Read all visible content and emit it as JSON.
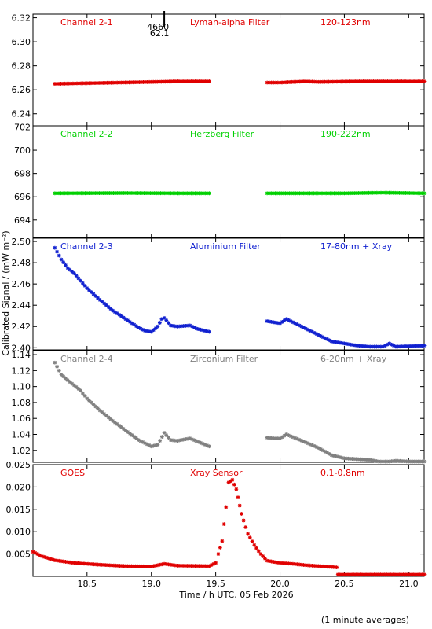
{
  "chart_data": {
    "type": "scatter",
    "xlabel": "Time / h UTC, 05 Feb 2026",
    "ylabel": "Calibrated Signal / (mW m⁻²)",
    "footnote": "(1 minute averages)",
    "xlim": [
      18.08,
      21.12
    ],
    "xticks": [
      "18.5",
      "19.0",
      "19.5",
      "20.0",
      "20.5",
      "21.0"
    ],
    "marker": {
      "time": 19.1,
      "label_top": "4660",
      "label_bottom": "62.1"
    },
    "panels": [
      {
        "labels": [
          "Channel 2-1",
          "Lyman-alpha Filter",
          "120-123nm"
        ],
        "color": "#e00000",
        "ylim": [
          6.23,
          6.323
        ],
        "yticks": [
          "6.24",
          "6.26",
          "6.28",
          "6.30",
          "6.32"
        ],
        "series": [
          [
            [
              18.25,
              6.265
            ],
            [
              18.5,
              6.2655
            ],
            [
              19.0,
              6.2665
            ],
            [
              19.2,
              6.267
            ],
            [
              19.45,
              6.267
            ]
          ],
          [
            [
              19.9,
              6.266
            ],
            [
              20.0,
              6.266
            ],
            [
              20.2,
              6.267
            ],
            [
              20.3,
              6.2665
            ],
            [
              20.6,
              6.267
            ],
            [
              21.12,
              6.267
            ]
          ]
        ]
      },
      {
        "labels": [
          "Channel 2-2",
          "Herzberg Filter",
          "190-222nm"
        ],
        "color": "#00d000",
        "ylim": [
          692.5,
          702.1
        ],
        "yticks": [
          "694",
          "696",
          "698",
          "700",
          "702"
        ],
        "series": [
          [
            [
              18.25,
              696.3
            ],
            [
              18.8,
              696.32
            ],
            [
              19.2,
              696.3
            ],
            [
              19.45,
              696.3
            ]
          ],
          [
            [
              19.9,
              696.3
            ],
            [
              20.5,
              696.3
            ],
            [
              20.8,
              696.35
            ],
            [
              21.12,
              696.3
            ]
          ]
        ]
      },
      {
        "labels": [
          "Channel 2-3",
          "Aluminium Filter",
          "17-80nm + Xray"
        ],
        "color": "#1020d0",
        "ylim": [
          2.398,
          2.503
        ],
        "yticks": [
          "2.40",
          "2.42",
          "2.44",
          "2.46",
          "2.48",
          "2.50"
        ],
        "series": [
          [
            [
              18.25,
              2.494
            ],
            [
              18.3,
              2.483
            ],
            [
              18.35,
              2.475
            ],
            [
              18.4,
              2.47
            ],
            [
              18.5,
              2.456
            ],
            [
              18.6,
              2.445
            ],
            [
              18.7,
              2.435
            ],
            [
              18.8,
              2.427
            ],
            [
              18.9,
              2.419
            ],
            [
              18.95,
              2.416
            ],
            [
              19.0,
              2.415
            ],
            [
              19.05,
              2.42
            ],
            [
              19.08,
              2.427
            ],
            [
              19.1,
              2.428
            ],
            [
              19.15,
              2.421
            ],
            [
              19.2,
              2.42
            ],
            [
              19.3,
              2.421
            ],
            [
              19.35,
              2.418
            ],
            [
              19.45,
              2.415
            ]
          ],
          [
            [
              19.9,
              2.425
            ],
            [
              19.95,
              2.424
            ],
            [
              20.0,
              2.423
            ],
            [
              20.05,
              2.427
            ],
            [
              20.1,
              2.424
            ],
            [
              20.2,
              2.418
            ],
            [
              20.3,
              2.412
            ],
            [
              20.4,
              2.406
            ],
            [
              20.5,
              2.404
            ],
            [
              20.6,
              2.402
            ],
            [
              20.7,
              2.401
            ],
            [
              20.8,
              2.401
            ],
            [
              20.85,
              2.404
            ],
            [
              20.9,
              2.401
            ],
            [
              21.12,
              2.402
            ]
          ]
        ]
      },
      {
        "labels": [
          "Channel 2-4",
          "Zirconium Filter",
          "6-20nm + Xray"
        ],
        "color": "#808080",
        "ylim": [
          1.005,
          1.145
        ],
        "yticks": [
          "1.02",
          "1.04",
          "1.06",
          "1.08",
          "1.10",
          "1.12",
          "1.14"
        ],
        "series": [
          [
            [
              18.25,
              1.13
            ],
            [
              18.3,
              1.115
            ],
            [
              18.35,
              1.108
            ],
            [
              18.45,
              1.095
            ],
            [
              18.5,
              1.085
            ],
            [
              18.6,
              1.07
            ],
            [
              18.7,
              1.057
            ],
            [
              18.8,
              1.045
            ],
            [
              18.9,
              1.033
            ],
            [
              19.0,
              1.025
            ],
            [
              19.05,
              1.027
            ],
            [
              19.1,
              1.042
            ],
            [
              19.15,
              1.033
            ],
            [
              19.2,
              1.032
            ],
            [
              19.3,
              1.035
            ],
            [
              19.45,
              1.025
            ]
          ],
          [
            [
              19.9,
              1.036
            ],
            [
              19.95,
              1.035
            ],
            [
              20.0,
              1.035
            ],
            [
              20.05,
              1.04
            ],
            [
              20.2,
              1.03
            ],
            [
              20.3,
              1.023
            ],
            [
              20.4,
              1.014
            ],
            [
              20.5,
              1.01
            ],
            [
              20.7,
              1.008
            ],
            [
              20.8,
              1.005
            ],
            [
              20.9,
              1.007
            ],
            [
              21.0,
              1.006
            ],
            [
              21.12,
              1.005
            ]
          ]
        ]
      },
      {
        "labels": [
          "GOES",
          "Xray Sensor",
          "0.1-0.8nm"
        ],
        "color": "#e00000",
        "ylim": [
          0.0,
          0.025
        ],
        "yticks": [
          "0.005",
          "0.010",
          "0.015",
          "0.020",
          "0.025"
        ],
        "series": [
          [
            [
              18.08,
              0.0055
            ],
            [
              18.15,
              0.0045
            ],
            [
              18.25,
              0.0036
            ],
            [
              18.4,
              0.003
            ],
            [
              18.6,
              0.0026
            ],
            [
              18.8,
              0.0023
            ],
            [
              19.0,
              0.0022
            ],
            [
              19.05,
              0.0025
            ],
            [
              19.1,
              0.0028
            ],
            [
              19.2,
              0.0024
            ],
            [
              19.45,
              0.0023
            ],
            [
              19.5,
              0.003
            ],
            [
              19.52,
              0.005
            ],
            [
              19.55,
              0.0079
            ],
            [
              19.58,
              0.0155
            ],
            [
              19.6,
              0.021
            ],
            [
              19.63,
              0.0216
            ],
            [
              19.66,
              0.0195
            ],
            [
              19.7,
              0.014
            ],
            [
              19.75,
              0.0095
            ],
            [
              19.8,
              0.007
            ],
            [
              19.85,
              0.005
            ],
            [
              19.9,
              0.0035
            ],
            [
              20.0,
              0.003
            ],
            [
              20.1,
              0.0028
            ],
            [
              20.2,
              0.0025
            ],
            [
              20.3,
              0.0023
            ],
            [
              20.4,
              0.0021
            ],
            [
              20.44,
              0.002
            ],
            [
              20.45,
              0.0004
            ],
            [
              20.7,
              0.0004
            ],
            [
              21.12,
              0.0004
            ]
          ]
        ]
      }
    ]
  }
}
